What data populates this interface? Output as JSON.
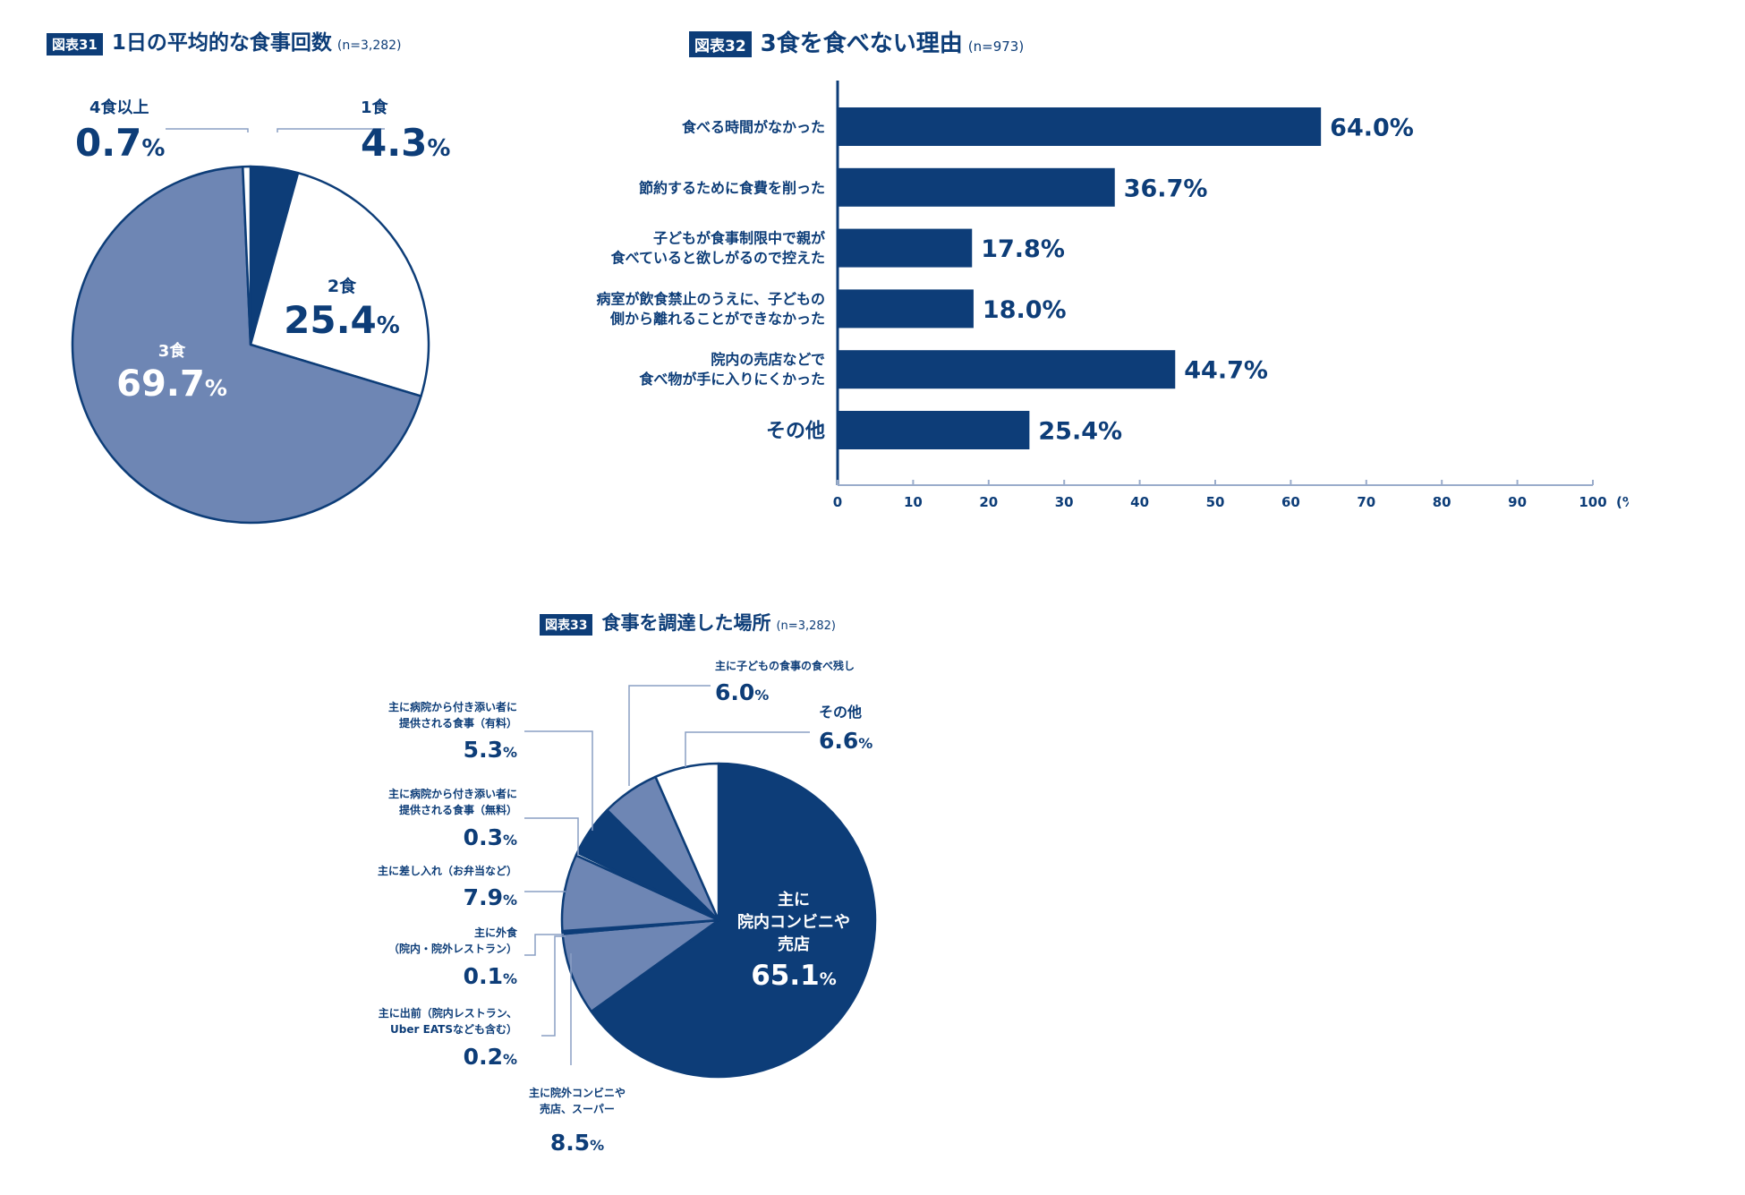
{
  "colors": {
    "dark": "#0d3d78",
    "medium": "#6e86b4",
    "white": "#ffffff",
    "text": "#0d3d78"
  },
  "chart31": {
    "badge": "図表31",
    "title": "1日の平均的な食事回数",
    "note": "(n=3,282)"
  },
  "chart32": {
    "badge": "図表32",
    "title": "3食を食べない理由",
    "note": "(n=973)",
    "x_unit": "(%)"
  },
  "chart33": {
    "badge": "図表33",
    "title": "食事を調達した場所",
    "note": "(n=3,282)"
  },
  "chart_data": [
    {
      "type": "pie",
      "slices": [
        {
          "label": "1食",
          "value": 4.3,
          "display": "4.3",
          "unit": "%",
          "color": "#0d3d78"
        },
        {
          "label": "2食",
          "value": 25.4,
          "display": "25.4",
          "unit": "%",
          "color": "#ffffff"
        },
        {
          "label": "3食",
          "value": 69.7,
          "display": "69.7",
          "unit": "%",
          "color": "#6e86b4"
        },
        {
          "label": "4食以上",
          "value": 0.7,
          "display": "0.7",
          "unit": "%",
          "color": "#ffffff"
        }
      ]
    },
    {
      "type": "bar",
      "orientation": "horizontal",
      "categories": [
        [
          "食べる時間がなかった"
        ],
        [
          "節約するために食費を削った"
        ],
        [
          "子どもが食事制限中で親が",
          "食べていると欲しがるので控えた"
        ],
        [
          "病室が飲食禁止のうえに、子どもの",
          "側から離れることができなかった"
        ],
        [
          "院内の売店などで",
          "食べ物が手に入りにくかった"
        ],
        [
          "その他"
        ]
      ],
      "values": [
        64.0,
        36.7,
        17.8,
        18.0,
        44.7,
        25.4
      ],
      "value_labels": [
        "64.0%",
        "36.7%",
        "17.8%",
        "18.0%",
        "44.7%",
        "25.4%"
      ],
      "xlim": [
        0,
        100
      ],
      "xticks": [
        "0",
        "10",
        "20",
        "30",
        "40",
        "50",
        "60",
        "70",
        "80",
        "90",
        "100"
      ]
    },
    {
      "type": "pie",
      "slices": [
        {
          "label": [
            "主に",
            "院内コンビニや",
            "売店"
          ],
          "value": 65.1,
          "display": "65.1",
          "unit": "%",
          "color": "#0d3d78"
        },
        {
          "label": [
            "主に院外コンビニや",
            "売店、スーパー"
          ],
          "value": 8.5,
          "display": "8.5",
          "unit": "%",
          "color": "#6e86b4"
        },
        {
          "label": [
            "主に出前（院内レストラン、",
            "Uber EATSなども含む）"
          ],
          "value": 0.2,
          "display": "0.2",
          "unit": "%",
          "color": "#ffffff"
        },
        {
          "label": [
            "主に外食",
            "（院内・院外レストラン）"
          ],
          "value": 0.1,
          "display": "0.1",
          "unit": "%",
          "color": "#ffffff"
        },
        {
          "label": [
            "主に差し入れ（お弁当など）"
          ],
          "value": 7.9,
          "display": "7.9",
          "unit": "%",
          "color": "#6e86b4"
        },
        {
          "label": [
            "主に病院から付き添い者に",
            "提供される食事（無料）"
          ],
          "value": 0.3,
          "display": "0.3",
          "unit": "%",
          "color": "#ffffff"
        },
        {
          "label": [
            "主に病院から付き添い者に",
            "提供される食事（有料）"
          ],
          "value": 5.3,
          "display": "5.3",
          "unit": "%",
          "color": "#0d3d78"
        },
        {
          "label": [
            "主に子どもの食事の食べ残し"
          ],
          "value": 6.0,
          "display": "6.0",
          "unit": "%",
          "color": "#6e86b4"
        },
        {
          "label": [
            "その他"
          ],
          "value": 6.6,
          "display": "6.6",
          "unit": "%",
          "color": "#ffffff"
        }
      ]
    }
  ]
}
